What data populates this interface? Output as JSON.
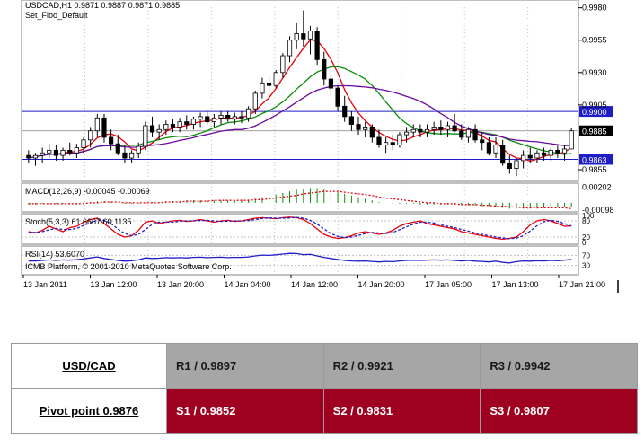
{
  "chart_data": {
    "type": "candlestick",
    "header_line1": "USDCAD,H1  0.9871 0.9887 0.9871 0.9885",
    "header_line2": "Set_Fibo_Default",
    "y_ticks": [
      "0.9980",
      "0.9955",
      "0.9930",
      "0.9905",
      "0.9885",
      "0.9855"
    ],
    "ylim": [
      0.9846,
      0.9986
    ],
    "levels": [
      {
        "label": "0.9900",
        "value": 0.99,
        "color": "#1e1ec8"
      },
      {
        "label": "0.9863",
        "value": 0.9863,
        "color": "#1e1ec8"
      }
    ],
    "current_price_label": "0.9885",
    "current_price": 0.9885,
    "x_tick_labels": [
      "13 Jan 2011",
      "13 Jan 12:00",
      "13 Jan 20:00",
      "14 Jan 04:00",
      "14 Jan 12:00",
      "14 Jan 20:00",
      "17 Jan 05:00",
      "17 Jan 13:00",
      "17 Jan 21:00"
    ],
    "candles": [
      [
        0.9866,
        0.987,
        0.986,
        0.9864
      ],
      [
        0.9864,
        0.9868,
        0.9858,
        0.9866
      ],
      [
        0.9866,
        0.9872,
        0.986,
        0.9868
      ],
      [
        0.9868,
        0.9875,
        0.9864,
        0.987
      ],
      [
        0.987,
        0.9874,
        0.9862,
        0.9866
      ],
      [
        0.9866,
        0.9872,
        0.9862,
        0.987
      ],
      [
        0.987,
        0.9876,
        0.9866,
        0.9868
      ],
      [
        0.9868,
        0.9875,
        0.9864,
        0.9872
      ],
      [
        0.9872,
        0.988,
        0.9868,
        0.9878
      ],
      [
        0.9878,
        0.9888,
        0.9872,
        0.9885
      ],
      [
        0.9885,
        0.9898,
        0.988,
        0.9895
      ],
      [
        0.9895,
        0.9898,
        0.9876,
        0.988
      ],
      [
        0.988,
        0.9886,
        0.987,
        0.9875
      ],
      [
        0.9875,
        0.9882,
        0.9866,
        0.9868
      ],
      [
        0.9868,
        0.9874,
        0.986,
        0.9864
      ],
      [
        0.9864,
        0.987,
        0.986,
        0.9868
      ],
      [
        0.9868,
        0.9876,
        0.9864,
        0.9873
      ],
      [
        0.9873,
        0.9892,
        0.987,
        0.9889
      ],
      [
        0.9889,
        0.9896,
        0.988,
        0.9884
      ],
      [
        0.9884,
        0.989,
        0.9878,
        0.9886
      ],
      [
        0.9886,
        0.9893,
        0.9882,
        0.989
      ],
      [
        0.989,
        0.9894,
        0.9884,
        0.9888
      ],
      [
        0.9888,
        0.9895,
        0.9884,
        0.9892
      ],
      [
        0.9892,
        0.9897,
        0.9886,
        0.989
      ],
      [
        0.989,
        0.9896,
        0.9886,
        0.9894
      ],
      [
        0.9894,
        0.9899,
        0.9888,
        0.9896
      ],
      [
        0.9896,
        0.99,
        0.989,
        0.9892
      ],
      [
        0.9892,
        0.9898,
        0.9888,
        0.9895
      ],
      [
        0.9895,
        0.99,
        0.989,
        0.9897
      ],
      [
        0.9897,
        0.99,
        0.9892,
        0.9894
      ],
      [
        0.9894,
        0.9899,
        0.989,
        0.9896
      ],
      [
        0.9896,
        0.99,
        0.9891,
        0.9895
      ],
      [
        0.9895,
        0.9904,
        0.9892,
        0.9902
      ],
      [
        0.9902,
        0.9916,
        0.9898,
        0.9914
      ],
      [
        0.9914,
        0.9926,
        0.991,
        0.9922
      ],
      [
        0.9922,
        0.9928,
        0.9916,
        0.992
      ],
      [
        0.992,
        0.9932,
        0.9918,
        0.993
      ],
      [
        0.993,
        0.9945,
        0.9926,
        0.9943
      ],
      [
        0.9943,
        0.9958,
        0.9938,
        0.9955
      ],
      [
        0.9955,
        0.9968,
        0.9948,
        0.996
      ],
      [
        0.996,
        0.9978,
        0.995,
        0.9956
      ],
      [
        0.9956,
        0.9966,
        0.9944,
        0.9962
      ],
      [
        0.9962,
        0.9965,
        0.9936,
        0.994
      ],
      [
        0.994,
        0.9946,
        0.992,
        0.9925
      ],
      [
        0.9925,
        0.993,
        0.9912,
        0.9918
      ],
      [
        0.9918,
        0.992,
        0.99,
        0.9904
      ],
      [
        0.9904,
        0.9912,
        0.9892,
        0.9896
      ],
      [
        0.9896,
        0.99,
        0.9885,
        0.989
      ],
      [
        0.989,
        0.9896,
        0.9882,
        0.9886
      ],
      [
        0.9886,
        0.9892,
        0.988,
        0.9888
      ],
      [
        0.9888,
        0.989,
        0.9876,
        0.988
      ],
      [
        0.988,
        0.9886,
        0.9872,
        0.9874
      ],
      [
        0.9874,
        0.988,
        0.9868,
        0.9876
      ],
      [
        0.9876,
        0.9882,
        0.987,
        0.9874
      ],
      [
        0.9874,
        0.9884,
        0.9872,
        0.9882
      ],
      [
        0.9882,
        0.9888,
        0.9876,
        0.9884
      ],
      [
        0.9884,
        0.989,
        0.988,
        0.9886
      ],
      [
        0.9886,
        0.989,
        0.988,
        0.9884
      ],
      [
        0.9884,
        0.989,
        0.988,
        0.9886
      ],
      [
        0.9886,
        0.9892,
        0.9882,
        0.9888
      ],
      [
        0.9888,
        0.9893,
        0.9882,
        0.9886
      ],
      [
        0.9886,
        0.9892,
        0.988,
        0.9889
      ],
      [
        0.9889,
        0.9898,
        0.9884,
        0.9885
      ],
      [
        0.9885,
        0.989,
        0.9878,
        0.988
      ],
      [
        0.988,
        0.9888,
        0.9876,
        0.9886
      ],
      [
        0.9886,
        0.989,
        0.9876,
        0.9878
      ],
      [
        0.9878,
        0.9884,
        0.987,
        0.9876
      ],
      [
        0.9876,
        0.988,
        0.9866,
        0.9868
      ],
      [
        0.9868,
        0.988,
        0.9864,
        0.9874
      ],
      [
        0.9874,
        0.9878,
        0.9858,
        0.986
      ],
      [
        0.986,
        0.9866,
        0.9852,
        0.9856
      ],
      [
        0.9856,
        0.9864,
        0.985,
        0.9862
      ],
      [
        0.9862,
        0.987,
        0.9856,
        0.9866
      ],
      [
        0.9866,
        0.9872,
        0.986,
        0.9864
      ],
      [
        0.9864,
        0.987,
        0.986,
        0.9868
      ],
      [
        0.9868,
        0.9872,
        0.9862,
        0.9866
      ],
      [
        0.9866,
        0.9872,
        0.9862,
        0.987
      ],
      [
        0.987,
        0.9874,
        0.9864,
        0.9868
      ],
      [
        0.9868,
        0.9874,
        0.9862,
        0.9871
      ],
      [
        0.9871,
        0.9887,
        0.9871,
        0.9885
      ]
    ],
    "ma_periods": [
      5,
      13,
      21
    ],
    "ma_colors": [
      "#e8000b",
      "#0a8c0a",
      "#6a0aa0"
    ],
    "macd": {
      "label": "MACD(12,26,9) -0.00045 -0.00069",
      "y_ticks": [
        "0.00202",
        "-0.00098"
      ],
      "ylim": [
        -0.0011,
        0.0024
      ],
      "histogram": [
        -0.0002,
        -0.0002,
        -0.0001,
        -0.0001,
        -0.0001,
        -0.0001,
        -0.0001,
        -0.0001,
        0.0,
        0.0001,
        0.0002,
        0.0002,
        0.0001,
        0.0,
        -0.0001,
        -0.0001,
        -0.0001,
        0.0,
        0.0001,
        0.0001,
        0.0002,
        0.0002,
        0.0002,
        0.0003,
        0.0003,
        0.0003,
        0.0003,
        0.0003,
        0.0003,
        0.0003,
        0.0003,
        0.0003,
        0.0004,
        0.0005,
        0.0007,
        0.0008,
        0.001,
        0.0012,
        0.0014,
        0.0016,
        0.0017,
        0.0018,
        0.0018,
        0.0017,
        0.0015,
        0.0013,
        0.0011,
        0.0009,
        0.0007,
        0.0005,
        0.0003,
        0.0001,
        0.0,
        -0.0001,
        -0.0001,
        -0.0001,
        -0.0001,
        -0.0002,
        -0.0002,
        -0.0002,
        -0.0002,
        -0.0002,
        -0.0002,
        -0.0003,
        -0.0003,
        -0.0003,
        -0.0004,
        -0.0004,
        -0.0005,
        -0.0006,
        -0.0007,
        -0.0007,
        -0.0007,
        -0.0007,
        -0.0007,
        -0.0006,
        -0.0006,
        -0.0005,
        -0.0005,
        -0.0005
      ],
      "signal": [
        -0.0001,
        -0.0001,
        -0.0001,
        -0.0001,
        -0.0001,
        -0.0001,
        -0.0001,
        -0.0001,
        -0.0001,
        0.0,
        0.0,
        0.0001,
        0.0001,
        0.0001,
        0.0,
        0.0,
        0.0,
        0.0,
        0.0,
        0.0,
        0.0001,
        0.0001,
        0.0001,
        0.0002,
        0.0002,
        0.0002,
        0.0002,
        0.0003,
        0.0003,
        0.0003,
        0.0003,
        0.0003,
        0.0003,
        0.0004,
        0.0004,
        0.0005,
        0.0006,
        0.0007,
        0.0008,
        0.0009,
        0.0011,
        0.0012,
        0.0013,
        0.0014,
        0.0014,
        0.0014,
        0.0013,
        0.0012,
        0.0011,
        0.001,
        0.0009,
        0.0007,
        0.0006,
        0.0005,
        0.0004,
        0.0003,
        0.0002,
        0.0001,
        0.0,
        0.0,
        -0.0001,
        -0.0001,
        -0.0001,
        -0.0002,
        -0.0002,
        -0.0002,
        -0.0003,
        -0.0003,
        -0.0004,
        -0.0004,
        -0.0005,
        -0.0005,
        -0.0006,
        -0.0006,
        -0.0006,
        -0.0006,
        -0.0006,
        -0.0006,
        -0.0006,
        -0.0007
      ]
    },
    "stoch": {
      "label": "Stoch(5,3,3) 61.6667 60.1135",
      "y_ticks": [
        "100",
        "80",
        "20",
        "0"
      ],
      "ylim": [
        0,
        100
      ],
      "main": [
        40,
        35,
        45,
        60,
        50,
        40,
        55,
        60,
        75,
        85,
        90,
        70,
        50,
        30,
        20,
        25,
        45,
        75,
        80,
        70,
        75,
        80,
        82,
        78,
        80,
        85,
        80,
        75,
        80,
        82,
        78,
        80,
        85,
        90,
        92,
        90,
        88,
        92,
        94,
        92,
        85,
        70,
        50,
        30,
        20,
        15,
        18,
        25,
        35,
        40,
        35,
        30,
        35,
        45,
        60,
        70,
        75,
        80,
        70,
        65,
        60,
        55,
        50,
        40,
        35,
        30,
        25,
        20,
        15,
        12,
        15,
        20,
        40,
        65,
        80,
        85,
        80,
        70,
        60,
        62
      ],
      "signal": [
        38,
        37,
        40,
        47,
        52,
        48,
        48,
        52,
        63,
        73,
        83,
        82,
        70,
        50,
        33,
        25,
        30,
        48,
        67,
        75,
        75,
        75,
        79,
        80,
        80,
        81,
        82,
        80,
        78,
        79,
        80,
        80,
        81,
        85,
        89,
        91,
        90,
        90,
        91,
        93,
        90,
        82,
        68,
        50,
        33,
        22,
        18,
        20,
        26,
        33,
        37,
        35,
        33,
        37,
        47,
        58,
        68,
        75,
        75,
        72,
        65,
        60,
        55,
        48,
        42,
        35,
        30,
        25,
        20,
        16,
        14,
        16,
        25,
        42,
        62,
        77,
        82,
        78,
        70,
        60
      ]
    },
    "rsi": {
      "label": "RSI(14) 53.6070",
      "footer": "ICMB Platform, © 2001-2010 MetaQuotes Software Corp.",
      "y_ticks": [
        "70",
        "30"
      ],
      "ylim": [
        0,
        100
      ],
      "values": [
        48,
        48,
        50,
        52,
        50,
        52,
        51,
        53,
        56,
        60,
        64,
        58,
        54,
        50,
        47,
        49,
        52,
        60,
        58,
        59,
        61,
        60,
        61,
        60,
        62,
        63,
        61,
        62,
        63,
        61,
        62,
        62,
        64,
        68,
        71,
        70,
        72,
        75,
        78,
        77,
        73,
        74,
        68,
        62,
        58,
        54,
        50,
        48,
        47,
        48,
        46,
        44,
        46,
        45,
        48,
        50,
        51,
        50,
        51,
        52,
        51,
        52,
        50,
        48,
        50,
        47,
        46,
        44,
        47,
        42,
        40,
        45,
        48,
        47,
        49,
        48,
        50,
        49,
        51,
        54
      ]
    },
    "colors": {
      "bg": "#ffffff",
      "grid": "#9a9a9a",
      "level_line": "#1e1ec8",
      "bull": "#ffffff",
      "bear": "#000000"
    }
  },
  "pivot_table": {
    "symbol": "USD/CAD",
    "pivot_label": "Pivot point 0.9876",
    "resistances": [
      "R1 / 0.9897",
      "R2 / 0.9921",
      "R3 / 0.9942"
    ],
    "supports": [
      "S1 / 0.9852",
      "S2 / 0.9831",
      "S3 / 0.9807"
    ],
    "colors": {
      "resistance_bg": "#a6a6a6",
      "support_bg": "#a00020"
    }
  }
}
